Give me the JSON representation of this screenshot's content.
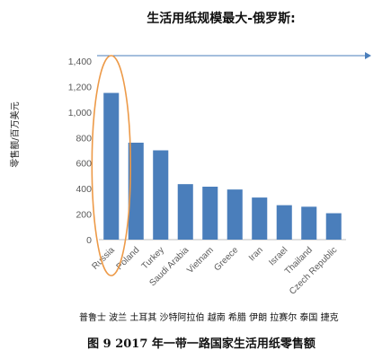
{
  "chart_data": {
    "type": "bar",
    "title": "生活用纸规模最大-俄罗斯:",
    "ylabel": "零售额/百万美元",
    "xlabel": "",
    "categories": [
      "Russia",
      "Poland",
      "Turkey",
      "Saudi Arabia",
      "Vietnam",
      "Greece",
      "Iran",
      "Israel",
      "Thailand",
      "Czech Republic"
    ],
    "values": [
      1150,
      760,
      700,
      435,
      415,
      393,
      330,
      270,
      258,
      207
    ],
    "ylim": [
      0,
      1400
    ],
    "yticks": [
      0,
      200,
      400,
      600,
      800,
      1000,
      1200,
      1400
    ],
    "ytick_labels": [
      "0",
      "200",
      "400",
      "600",
      "800",
      "1,000",
      "1,200",
      "1,400"
    ],
    "grid": false,
    "highlight": "Russia",
    "colors": {
      "bar": "#4a7ebb",
      "highlight_ellipse": "#ed9a48",
      "arrow": "#4a7ebb",
      "axis": "#bfbfbf"
    },
    "footnote": "普鲁士 波兰 土耳其 沙特阿拉伯 越南 希腊 伊朗 拉赛尔 泰国 捷克",
    "caption": "图 9  2017 年一带一路国家生活用纸零售额"
  }
}
